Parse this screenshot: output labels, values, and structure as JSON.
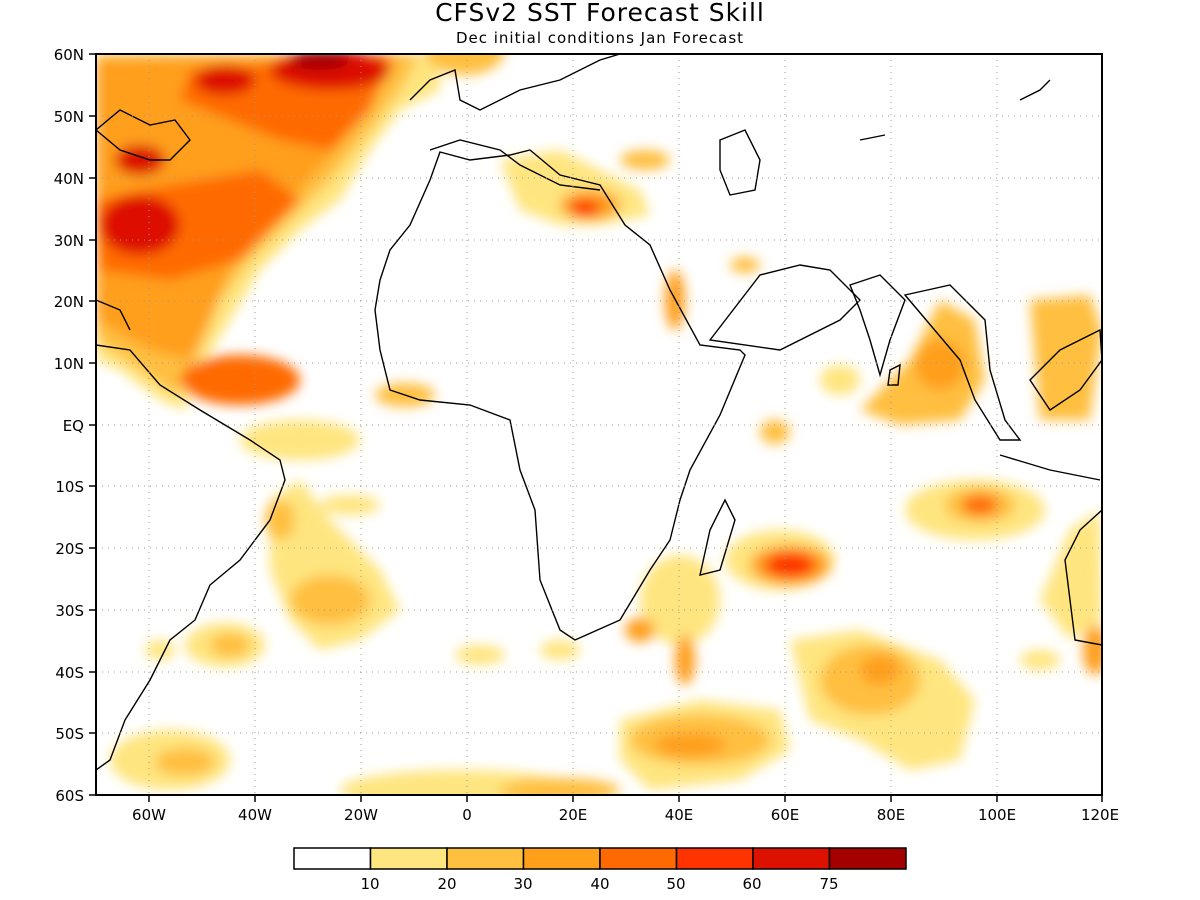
{
  "title": "CFSv2 SST Forecast Skill",
  "subtitle": "Dec initial conditions  Jan Forecast",
  "map": {
    "lon_range": [
      -70,
      120
    ],
    "lat_range": [
      -60,
      60
    ],
    "x_ticks": [
      "60W",
      "40W",
      "20W",
      "0",
      "20E",
      "40E",
      "60E",
      "80E",
      "100E",
      "120E"
    ],
    "y_ticks": [
      "60N",
      "50N",
      "40N",
      "30N",
      "20N",
      "10N",
      "EQ",
      "10S",
      "20S",
      "30S",
      "40S",
      "50S",
      "60S"
    ],
    "grid": true
  },
  "colorbar": {
    "labels": [
      "10",
      "20",
      "30",
      "40",
      "50",
      "60",
      "75"
    ],
    "colors": [
      "#ffffff",
      "#ffe57f",
      "#ffbf3f",
      "#ff9f1a",
      "#ff6a00",
      "#ff3300",
      "#dd1100",
      "#a50000"
    ]
  }
}
